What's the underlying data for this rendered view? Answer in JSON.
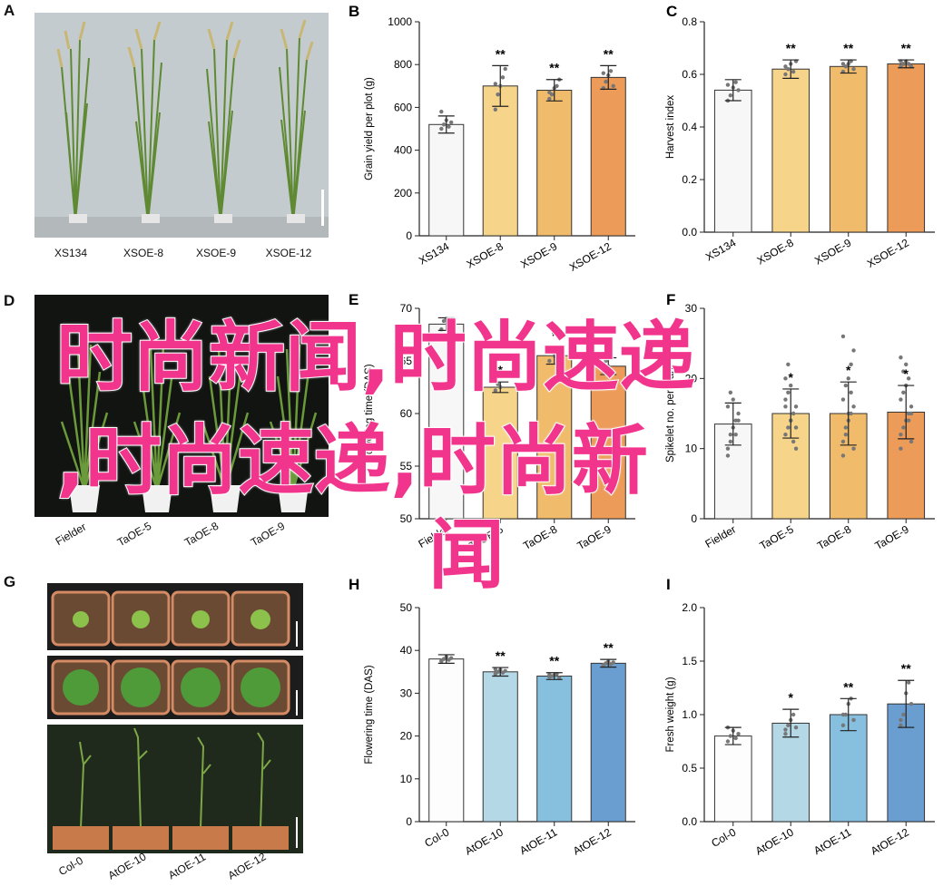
{
  "panels": {
    "A": {
      "letter": "A",
      "labels": [
        "XS134",
        "XSOE-8",
        "XSOE-9",
        "XSOE-12"
      ]
    },
    "D": {
      "letter": "D",
      "labels": [
        "Fielder",
        "TaOE-5",
        "TaOE-8",
        "TaOE-9"
      ]
    },
    "G": {
      "letter": "G",
      "labels": [
        "Col-0",
        "AtOE-10",
        "AtOE-11",
        "AtOE-12"
      ]
    }
  },
  "overlay": {
    "line1": "时尚新闻,时尚速递",
    "line2": ",时尚速递,时尚新",
    "line3": "闻"
  },
  "colors": {
    "white_bar": "#f7f7f7",
    "yellow_light": "#f6d48a",
    "yellow_mid": "#f0bb6a",
    "orange": "#ec9b58",
    "blue1": "#fdfdfd",
    "blue2": "#b4d8e6",
    "blue3": "#87bfdf",
    "blue4": "#6b9ed0",
    "overlay_pink": "#f2358c"
  },
  "chart_data": [
    {
      "panel": "B",
      "type": "bar",
      "categories": [
        "XS134",
        "XSOE-8",
        "XSOE-9",
        "XSOE-12"
      ],
      "values": [
        520,
        700,
        680,
        740
      ],
      "errors": [
        40,
        95,
        50,
        55
      ],
      "significance": [
        "",
        "**",
        "**",
        "**"
      ],
      "ylabel": "Grain yield per plot (g)",
      "ylim": [
        0,
        1000
      ],
      "yticks": [
        0,
        200,
        400,
        600,
        800,
        1000
      ],
      "points": [
        [
          500,
          520,
          540,
          510,
          530,
          580
        ],
        [
          590,
          660,
          700,
          740,
          780,
          710
        ],
        [
          640,
          660,
          690,
          700,
          730,
          670
        ],
        [
          690,
          720,
          750,
          770,
          700,
          760
        ]
      ],
      "colors": [
        "#f7f7f7",
        "#f6d48a",
        "#f0bb6a",
        "#ec9b58"
      ]
    },
    {
      "panel": "C",
      "type": "bar",
      "categories": [
        "XS134",
        "XSOE-8",
        "XSOE-9",
        "XSOE-12"
      ],
      "values": [
        0.54,
        0.62,
        0.63,
        0.64
      ],
      "errors": [
        0.04,
        0.035,
        0.025,
        0.015
      ],
      "significance": [
        "",
        "**",
        "**",
        "**"
      ],
      "ylabel": "Harvest index",
      "ylim": [
        0,
        0.8
      ],
      "yticks": [
        0.0,
        0.2,
        0.4,
        0.6,
        0.8
      ],
      "points": [
        [
          0.5,
          0.52,
          0.55,
          0.57,
          0.54,
          0.56
        ],
        [
          0.6,
          0.62,
          0.64,
          0.61,
          0.65,
          0.63
        ],
        [
          0.61,
          0.63,
          0.64,
          0.65,
          0.62,
          0.64
        ],
        [
          0.63,
          0.64,
          0.65,
          0.64,
          0.63,
          0.65
        ]
      ],
      "colors": [
        "#f7f7f7",
        "#f6d48a",
        "#f0bb6a",
        "#ec9b58"
      ]
    },
    {
      "panel": "E",
      "type": "bar",
      "categories": [
        "Fielder",
        "TaOE-5",
        "TaOE-8",
        "TaOE-9"
      ],
      "values": [
        68.5,
        62.5,
        65.5,
        64.5
      ],
      "errors": [
        0.6,
        0.5,
        0.8,
        0.8
      ],
      "significance": [
        "",
        "*",
        "*",
        "*"
      ],
      "ylabel": "Flowering time (DAS)",
      "ylim": [
        50,
        70
      ],
      "yticks": [
        50,
        55,
        60,
        65,
        70
      ],
      "points": [
        [
          68.0,
          68.8,
          69.0
        ],
        [
          62.2,
          62.8,
          62.5
        ],
        [
          65.0,
          66.0,
          65.5
        ],
        [
          64.0,
          65.0,
          64.5
        ]
      ],
      "colors": [
        "#f7f7f7",
        "#f6d48a",
        "#f0bb6a",
        "#ec9b58"
      ]
    },
    {
      "panel": "F",
      "type": "bar",
      "categories": [
        "Fielder",
        "TaOE-5",
        "TaOE-8",
        "TaOE-9"
      ],
      "values": [
        13.5,
        15.0,
        15.0,
        15.2
      ],
      "errors": [
        3.0,
        3.5,
        4.5,
        3.8
      ],
      "significance": [
        "",
        "*",
        "*",
        "*"
      ],
      "ylabel": "Spikelet no. per plant",
      "ylim": [
        0,
        30
      ],
      "yticks": [
        0,
        10,
        20,
        30
      ],
      "points": [
        [
          10,
          12,
          13,
          14,
          15,
          16,
          11,
          17,
          12,
          14,
          9,
          18
        ],
        [
          12,
          13,
          14,
          15,
          16,
          17,
          18,
          19,
          11,
          10,
          20,
          22,
          14,
          15,
          13,
          16
        ],
        [
          11,
          12,
          14,
          15,
          16,
          17,
          19,
          20,
          22,
          10,
          9,
          13,
          15,
          18,
          24,
          26
        ],
        [
          12,
          13,
          14,
          15,
          16,
          17,
          18,
          19,
          20,
          11,
          10,
          21,
          22,
          14,
          15,
          23
        ]
      ],
      "colors": [
        "#f7f7f7",
        "#f6d48a",
        "#f0bb6a",
        "#ec9b58"
      ]
    },
    {
      "panel": "H",
      "type": "bar",
      "categories": [
        "Col-0",
        "AtOE-10",
        "AtOE-11",
        "AtOE-12"
      ],
      "values": [
        38.0,
        35.0,
        34.0,
        37.0
      ],
      "errors": [
        1.0,
        1.0,
        0.8,
        0.9
      ],
      "significance": [
        "",
        "**",
        "**",
        "**"
      ],
      "ylabel": "Flowering time (DAS)",
      "ylim": [
        0,
        50
      ],
      "yticks": [
        0,
        10,
        20,
        30,
        40,
        50
      ],
      "points": [
        [
          37.5,
          38.0,
          38.5,
          37.8,
          38.2,
          37.6
        ],
        [
          34.5,
          35.0,
          35.5,
          34.8,
          35.2,
          35.6
        ],
        [
          33.8,
          34.0,
          34.2,
          34.5,
          33.6,
          34.3
        ],
        [
          36.5,
          37.0,
          37.4,
          36.8,
          37.2,
          36.6
        ]
      ],
      "colors": [
        "#fdfdfd",
        "#b4d8e6",
        "#87bfdf",
        "#6b9ed0"
      ]
    },
    {
      "panel": "I",
      "type": "bar",
      "categories": [
        "Col-0",
        "AtOE-10",
        "AtOE-11",
        "AtOE-12"
      ],
      "values": [
        0.8,
        0.92,
        1.0,
        1.1
      ],
      "errors": [
        0.08,
        0.13,
        0.15,
        0.22
      ],
      "significance": [
        "",
        "*",
        "**",
        "**"
      ],
      "ylabel": "Fresh weight (g)",
      "ylim": [
        0,
        2.0
      ],
      "yticks": [
        0.0,
        0.5,
        1.0,
        1.5,
        2.0
      ],
      "points": [
        [
          0.75,
          0.8,
          0.85,
          0.78,
          0.82,
          0.88
        ],
        [
          0.82,
          0.9,
          0.95,
          1.0,
          0.88,
          0.86
        ],
        [
          0.9,
          1.0,
          1.1,
          1.15,
          0.95,
          1.0
        ],
        [
          0.9,
          1.0,
          1.2,
          1.3,
          1.1,
          0.95
        ]
      ],
      "colors": [
        "#fdfdfd",
        "#b4d8e6",
        "#87bfdf",
        "#6b9ed0"
      ]
    }
  ]
}
